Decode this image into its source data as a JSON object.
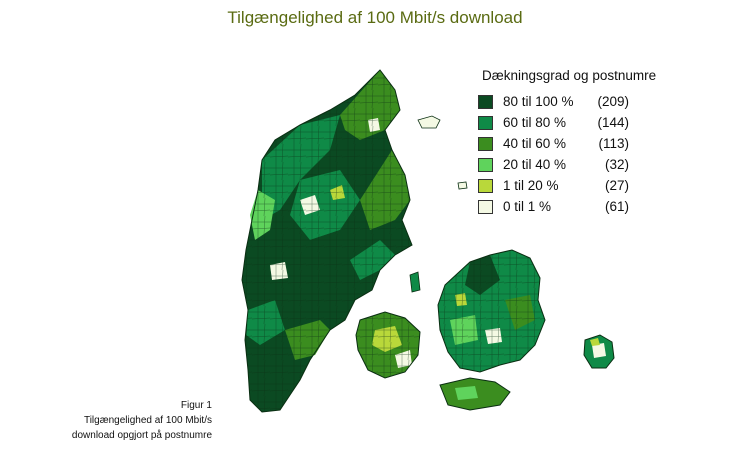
{
  "title": "Tilgængelighed af 100 Mbit/s download",
  "legend": {
    "title": "Dækningsgrad og postnumre",
    "items": [
      {
        "range": "80 til 100 %",
        "count": "(209)",
        "color": "#0b4a22"
      },
      {
        "range": "60 til 80 %",
        "count": "(144)",
        "color": "#0f8a47"
      },
      {
        "range": "40 til 60 %",
        "count": "(113)",
        "color": "#3b8d1f"
      },
      {
        "range": "20 til 40 %",
        "count": "(32)",
        "color": "#5fd35c"
      },
      {
        "range": "1 til 20 %",
        "count": "(27)",
        "color": "#b9d83a"
      },
      {
        "range": "0 til 1 %",
        "count": "(61)",
        "color": "#f4f9e4"
      }
    ]
  },
  "caption": {
    "line1": "Figur 1",
    "line2": "Tilgængelighed af 100 Mbit/s",
    "line3": "download opgjort på postnumre"
  }
}
